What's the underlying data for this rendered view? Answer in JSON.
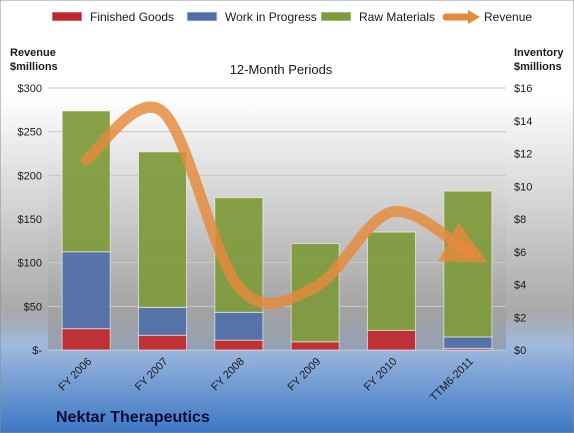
{
  "chart_data": {
    "type": "bar",
    "stacked": true,
    "title": "12-Month Periods",
    "company": "Nektar Therapeutics",
    "categories": [
      "FY 2006",
      "FY 2007",
      "FY 2008",
      "FY 2009",
      "FY 2010",
      "TTM6-2011"
    ],
    "y_left": {
      "label_lines": [
        "Revenue",
        "$millions"
      ],
      "range": [
        0,
        300
      ],
      "ticks": [
        0,
        50,
        100,
        150,
        200,
        250,
        300
      ],
      "tick_labels": [
        "$-",
        "$50",
        "$100",
        "$150",
        "$200",
        "$250",
        "$300"
      ]
    },
    "y_right": {
      "label_lines": [
        "Inventory",
        "$millions"
      ],
      "range": [
        0,
        16
      ],
      "ticks": [
        0,
        2,
        4,
        6,
        8,
        10,
        12,
        14,
        16
      ],
      "tick_labels": [
        "$0",
        "$2",
        "$4",
        "$6",
        "$8",
        "$10",
        "$12",
        "$14",
        "$16"
      ]
    },
    "series": [
      {
        "name": "Finished Goods",
        "kind": "bar",
        "axis": "right",
        "color": "#c0272d",
        "values": [
          1.3,
          0.9,
          0.6,
          0.5,
          1.2,
          0.1
        ]
      },
      {
        "name": "Work in Progress",
        "kind": "bar",
        "axis": "right",
        "color": "#4f6fa8",
        "values": [
          4.7,
          1.7,
          1.7,
          0.0,
          0.0,
          0.7
        ]
      },
      {
        "name": "Raw Materials",
        "kind": "bar",
        "axis": "right",
        "color": "#7e9a3a",
        "values": [
          8.6,
          9.5,
          7.0,
          6.0,
          6.0,
          8.9
        ]
      },
      {
        "name": "Revenue",
        "kind": "line",
        "axis": "left",
        "color": "#e58a3c",
        "values": [
          218,
          273,
          72,
          72,
          158,
          112
        ]
      }
    ],
    "legend_position": "top"
  }
}
